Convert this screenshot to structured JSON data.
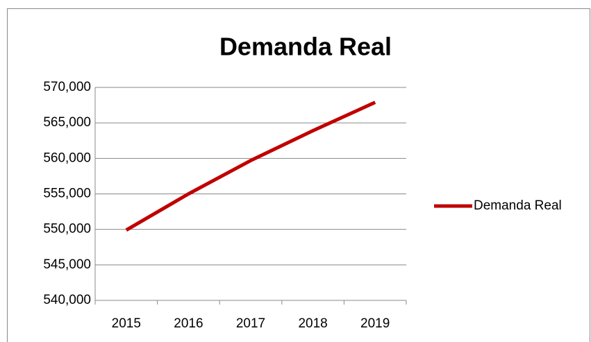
{
  "chart_data": {
    "type": "line",
    "title": "Demanda Real",
    "categories": [
      "2015",
      "2016",
      "2017",
      "2018",
      "2019"
    ],
    "series": [
      {
        "name": "Demanda Real",
        "color": "#c00000",
        "values": [
          549900,
          555000,
          559700,
          563900,
          567900
        ]
      }
    ],
    "ylim": [
      540000,
      570000
    ],
    "yticks": [
      {
        "value": 540000,
        "label": "540,000"
      },
      {
        "value": 545000,
        "label": "545,000"
      },
      {
        "value": 550000,
        "label": "550,000"
      },
      {
        "value": 555000,
        "label": "555,000"
      },
      {
        "value": 560000,
        "label": "560,000"
      },
      {
        "value": 565000,
        "label": "565,000"
      },
      {
        "value": 570000,
        "label": "570,000"
      }
    ],
    "grid": true,
    "legend": "right"
  }
}
